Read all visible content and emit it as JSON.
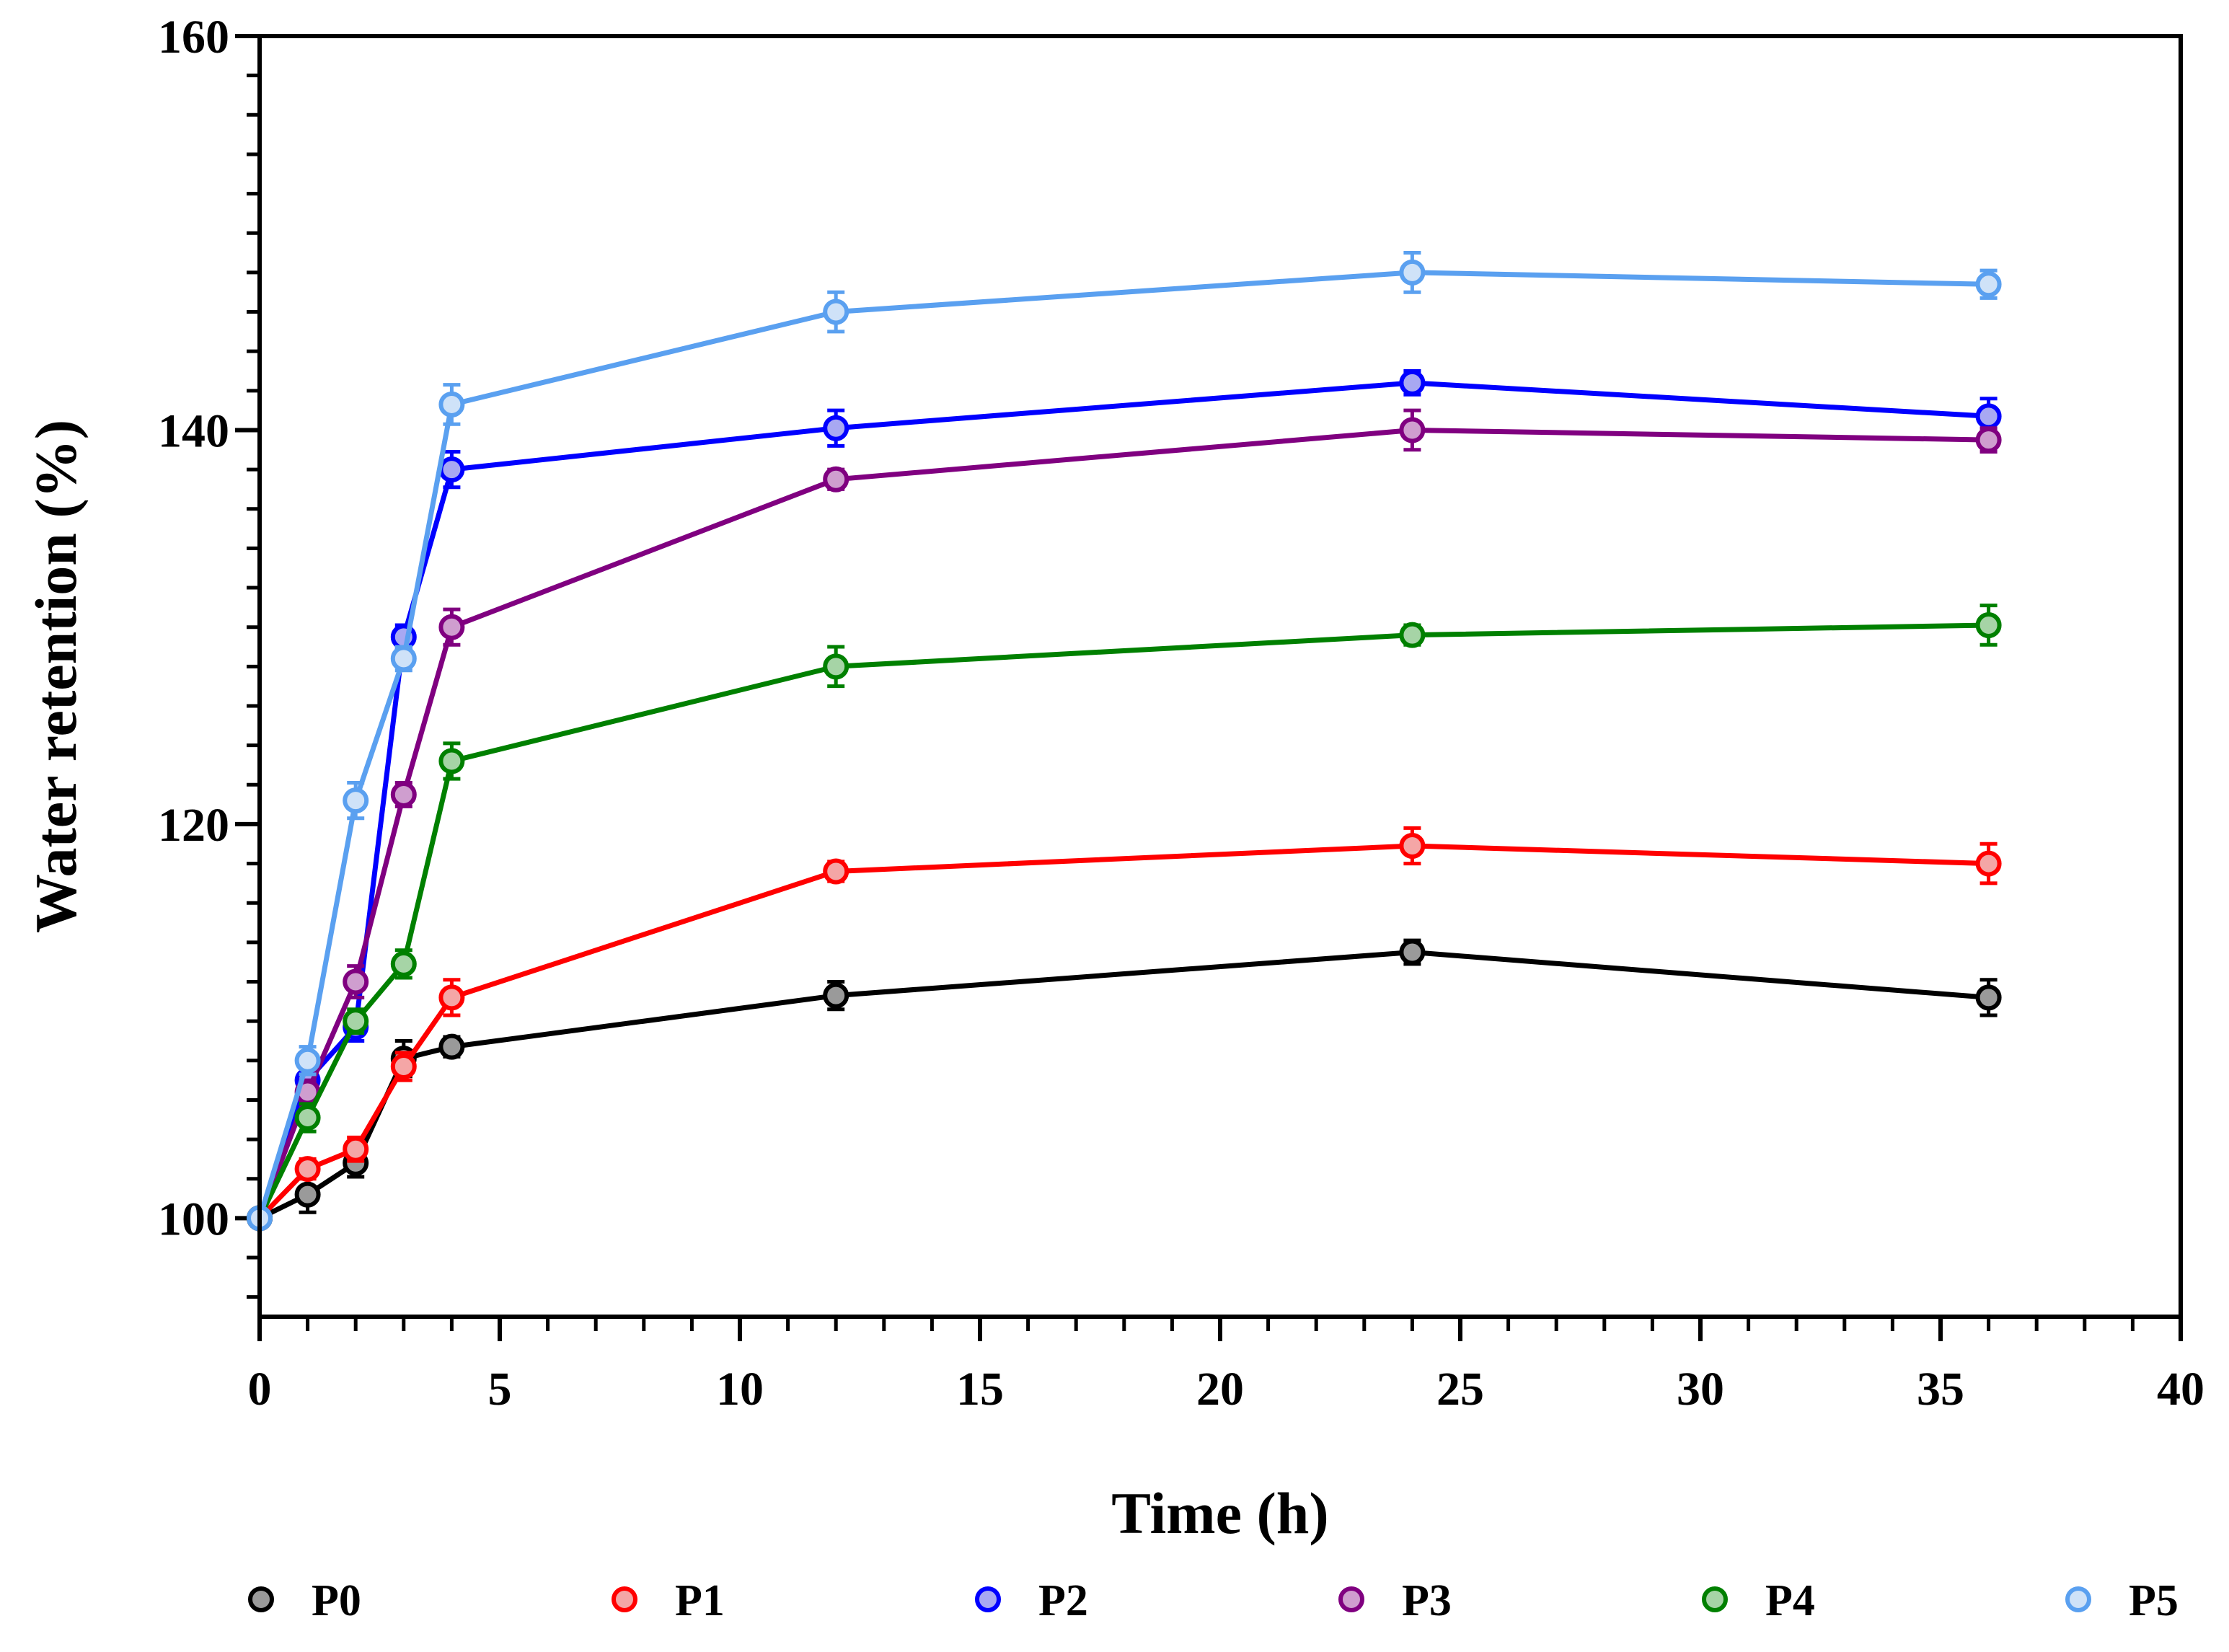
{
  "chart_data": {
    "type": "line",
    "title": "",
    "xlabel": "Time (h)",
    "ylabel": "Water retention (%)",
    "xlim": [
      0,
      40
    ],
    "ylim": [
      95,
      160
    ],
    "x_ticks": [
      0,
      5,
      10,
      15,
      20,
      25,
      30,
      35,
      40
    ],
    "x_tick_labels": [
      "0",
      "5",
      "10",
      "15",
      "20",
      "25",
      "30",
      "35",
      "40"
    ],
    "y_ticks": [
      100,
      120,
      140,
      160
    ],
    "y_tick_labels": [
      "100",
      "120",
      "140",
      "160"
    ],
    "grid": false,
    "legend_position": "bottom",
    "x": [
      0,
      1,
      2,
      3,
      4,
      12,
      24,
      36
    ],
    "series": [
      {
        "name": "P0",
        "color": "#000000",
        "fill": "#9a9a9a",
        "values": [
          100,
          101.2,
          102.8,
          108.1,
          108.7,
          111.3,
          113.5,
          111.2
        ],
        "errors": [
          0,
          0.9,
          0.7,
          0.9,
          0.5,
          0.7,
          0.6,
          0.9
        ]
      },
      {
        "name": "P1",
        "color": "#ff0000",
        "fill": "#f4a6a6",
        "values": [
          100,
          102.5,
          103.5,
          107.7,
          111.2,
          117.6,
          118.9,
          118.0
        ],
        "errors": [
          0,
          0.5,
          0.6,
          0.7,
          0.9,
          0.5,
          0.9,
          1.0
        ]
      },
      {
        "name": "P2",
        "color": "#0000ff",
        "fill": "#a8a8f2",
        "values": [
          100,
          107.0,
          109.7,
          129.5,
          138.0,
          140.1,
          142.4,
          140.7
        ],
        "errors": [
          0,
          0.8,
          0.7,
          0.6,
          0.9,
          0.9,
          0.6,
          0.9
        ]
      },
      {
        "name": "P3",
        "color": "#800080",
        "fill": "#cf9ecf",
        "values": [
          100,
          106.4,
          112.0,
          121.5,
          130.0,
          137.5,
          140.0,
          139.5
        ],
        "errors": [
          0,
          0.6,
          0.8,
          0.6,
          0.9,
          0.5,
          1.0,
          0.6
        ]
      },
      {
        "name": "P4",
        "color": "#008000",
        "fill": "#a6d4a6",
        "values": [
          100,
          105.1,
          110.0,
          112.9,
          123.2,
          128.0,
          129.6,
          130.1
        ],
        "errors": [
          0,
          0.7,
          0.6,
          0.7,
          0.9,
          1.0,
          0.5,
          1.0
        ]
      },
      {
        "name": "P5",
        "color": "#5aa0f0",
        "fill": "#cfe2f8",
        "values": [
          100,
          108.0,
          121.2,
          128.4,
          141.3,
          146.0,
          148.0,
          147.4
        ],
        "errors": [
          0,
          0.7,
          0.9,
          0.6,
          1.0,
          1.0,
          1.0,
          0.7
        ]
      }
    ]
  }
}
